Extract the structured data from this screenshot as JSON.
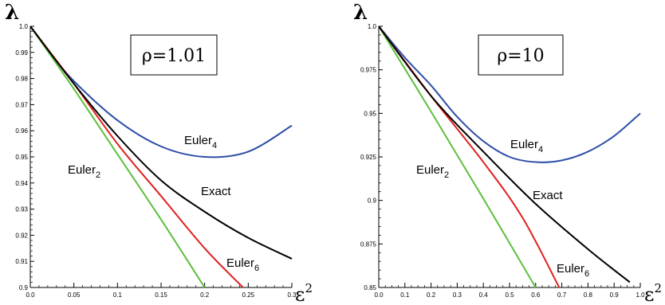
{
  "chart_data": [
    {
      "type": "line",
      "title": "ρ=1.01",
      "ylabel": "λ",
      "xlabel": "ε",
      "xlabel_sup": "2",
      "xlim": [
        0,
        0.3
      ],
      "ylim": [
        0.9,
        1.0
      ],
      "x_ticks": [
        "0.0",
        "0.05",
        "0.1",
        "0.15",
        "0.2",
        "0.25",
        "0.3"
      ],
      "y_ticks": [
        "0.9",
        "0.91",
        "0.92",
        "0.93",
        "0.94",
        "0.95",
        "0.96",
        "0.97",
        "0.98",
        "0.99",
        "1.0"
      ],
      "series": [
        {
          "name": "Euler",
          "sub": "2",
          "color": "#5bbf3a",
          "x": [
            0,
            0.05,
            0.1,
            0.15,
            0.2
          ],
          "y": [
            1.0,
            0.976,
            0.951,
            0.926,
            0.9
          ]
        },
        {
          "name": "Euler",
          "sub": "4",
          "color": "#2e4ea8",
          "x": [
            0,
            0.025,
            0.05,
            0.1,
            0.15,
            0.2,
            0.25,
            0.3
          ],
          "y": [
            1.0,
            0.989,
            0.979,
            0.964,
            0.954,
            0.95,
            0.952,
            0.962
          ]
        },
        {
          "name": "Euler",
          "sub": "6",
          "color": "#e0201e",
          "x": [
            0,
            0.05,
            0.1,
            0.15,
            0.2,
            0.244
          ],
          "y": [
            1.0,
            0.978,
            0.955,
            0.935,
            0.915,
            0.9
          ]
        },
        {
          "name": "Exact",
          "sub": "",
          "color": "#000000",
          "x": [
            0,
            0.05,
            0.1,
            0.15,
            0.2,
            0.25,
            0.3
          ],
          "y": [
            1.0,
            0.978,
            0.958,
            0.941,
            0.929,
            0.919,
            0.911
          ]
        }
      ]
    },
    {
      "type": "line",
      "title": "ρ=10",
      "ylabel": "λ",
      "xlabel": "ε",
      "xlabel_sup": "2",
      "xlim": [
        0,
        1.0
      ],
      "ylim": [
        0.85,
        1.0
      ],
      "x_ticks": [
        "0.0",
        "0.1",
        "0.2",
        "0.3",
        "0.4",
        "0.5",
        "0.6",
        "0.7",
        "0.8",
        "0.9",
        "1.0"
      ],
      "y_ticks": [
        "0.85",
        "0.875",
        "0.9",
        "0.925",
        "0.95",
        "0.975",
        "1.0"
      ],
      "series": [
        {
          "name": "Euler",
          "sub": "2",
          "color": "#5bbf3a",
          "x": [
            0,
            0.2,
            0.4,
            0.6
          ],
          "y": [
            1.0,
            0.951,
            0.901,
            0.85
          ]
        },
        {
          "name": "Euler",
          "sub": "4",
          "color": "#2e4ea8",
          "x": [
            0,
            0.1,
            0.2,
            0.3,
            0.4,
            0.5,
            0.6,
            0.7,
            0.8,
            0.9,
            1.0
          ],
          "y": [
            1.0,
            0.982,
            0.966,
            0.948,
            0.934,
            0.925,
            0.922,
            0.923,
            0.928,
            0.937,
            0.95
          ]
        },
        {
          "name": "Euler",
          "sub": "6",
          "color": "#e0201e",
          "x": [
            0,
            0.2,
            0.4,
            0.55,
            0.69
          ],
          "y": [
            1.0,
            0.96,
            0.922,
            0.89,
            0.85
          ]
        },
        {
          "name": "Exact",
          "sub": "",
          "color": "#000000",
          "x": [
            0,
            0.2,
            0.4,
            0.6,
            0.8,
            0.96
          ],
          "y": [
            1.0,
            0.96,
            0.928,
            0.898,
            0.872,
            0.853
          ]
        }
      ]
    }
  ]
}
